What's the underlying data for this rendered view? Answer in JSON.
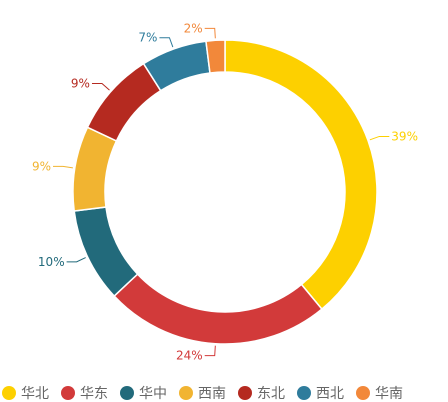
{
  "chart_data": {
    "type": "pie",
    "variant": "donut",
    "categories": [
      "华北",
      "华东",
      "华中",
      "西南",
      "东北",
      "西北",
      "华南"
    ],
    "values": [
      39,
      24,
      10,
      9,
      9,
      7,
      2
    ],
    "value_labels": [
      "39%",
      "24%",
      "10%",
      "9%",
      "9%",
      "7%",
      "2%"
    ],
    "colors": [
      "#FDD000",
      "#D23A3A",
      "#226A7B",
      "#F1B431",
      "#B52A20",
      "#2F7C9C",
      "#F2883A"
    ],
    "start_angle_deg": 0,
    "direction": "clockwise",
    "legend_position": "bottom"
  }
}
